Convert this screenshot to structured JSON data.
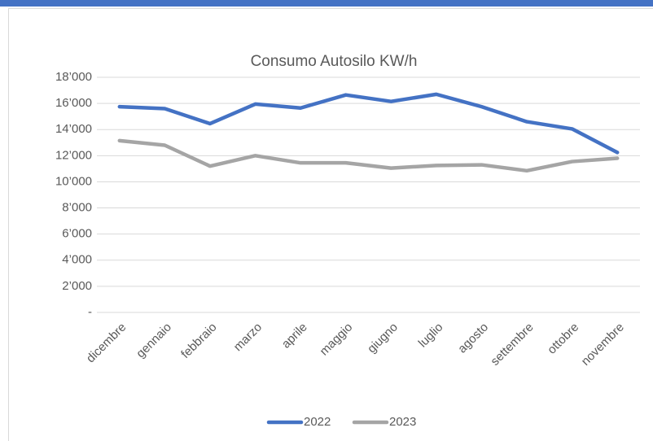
{
  "chart_data": {
    "type": "line",
    "title": "Consumo Autosilo KW/h",
    "categories": [
      "dicembre",
      "gennaio",
      "febbraio",
      "marzo",
      "aprile",
      "maggio",
      "giugno",
      "luglio",
      "agosto",
      "settembre",
      "ottobre",
      "novembre"
    ],
    "series": [
      {
        "name": "2022",
        "color": "#4472c4",
        "values": [
          15750,
          15600,
          14450,
          15950,
          15650,
          16650,
          16150,
          16700,
          15750,
          14600,
          14050,
          12250
        ]
      },
      {
        "name": "2023",
        "color": "#a5a5a5",
        "values": [
          13150,
          12800,
          11200,
          12000,
          11450,
          11450,
          11050,
          11250,
          11300,
          10850,
          11550,
          11800
        ]
      }
    ],
    "ylim": [
      0,
      18000
    ],
    "yticks": [
      {
        "value": 0,
        "label": "-"
      },
      {
        "value": 2000,
        "label": "2’000"
      },
      {
        "value": 4000,
        "label": "4’000"
      },
      {
        "value": 6000,
        "label": "6’000"
      },
      {
        "value": 8000,
        "label": "8’000"
      },
      {
        "value": 10000,
        "label": "10’000"
      },
      {
        "value": 12000,
        "label": "12’000"
      },
      {
        "value": 14000,
        "label": "14’000"
      },
      {
        "value": 16000,
        "label": "16’000"
      },
      {
        "value": 18000,
        "label": "18’000"
      }
    ],
    "grid": true,
    "legend": "bottom"
  }
}
